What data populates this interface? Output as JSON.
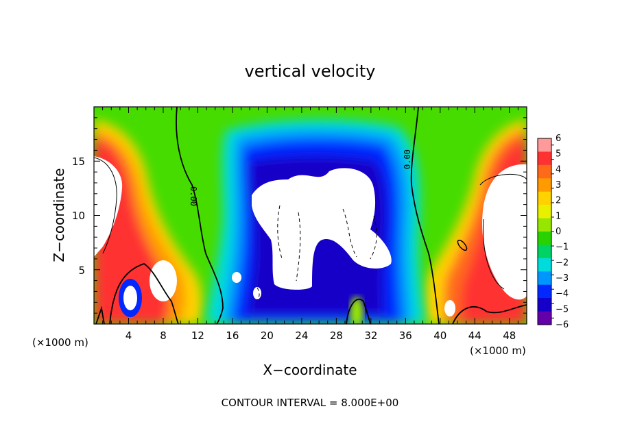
{
  "chart_data": {
    "type": "heatmap",
    "title": "vertical velocity",
    "xlabel": "X−coordinate",
    "ylabel": "Z−coordinate",
    "x_unit_label": "(×1000 m)",
    "x_unit_label_right": "(×1000 m)",
    "xlim": [
      0,
      50
    ],
    "ylim": [
      0,
      20
    ],
    "x_ticks": [
      "4",
      "8",
      "12",
      "16",
      "20",
      "24",
      "28",
      "32",
      "36",
      "40",
      "44",
      "48"
    ],
    "y_ticks": [
      "5",
      "10",
      "15"
    ],
    "colorbar": {
      "min": -6,
      "max": 6,
      "labels": [
        "6",
        "5",
        "4",
        "3",
        "2",
        "1",
        "0",
        "−1",
        "−2",
        "−3",
        "−4",
        "−5",
        "−6"
      ],
      "colors": [
        "#ff9a9a",
        "#ff3232",
        "#ff6a1a",
        "#ff9a00",
        "#ffd200",
        "#e8f000",
        "#96e600",
        "#28d200",
        "#00d264",
        "#00dcdc",
        "#0096ff",
        "#0028ff",
        "#1400c8",
        "#6400aa"
      ]
    },
    "contour_labels": [
      "0.00",
      "0.00"
    ],
    "note": "CONTOUR INTERVAL = 8.000E+00"
  }
}
